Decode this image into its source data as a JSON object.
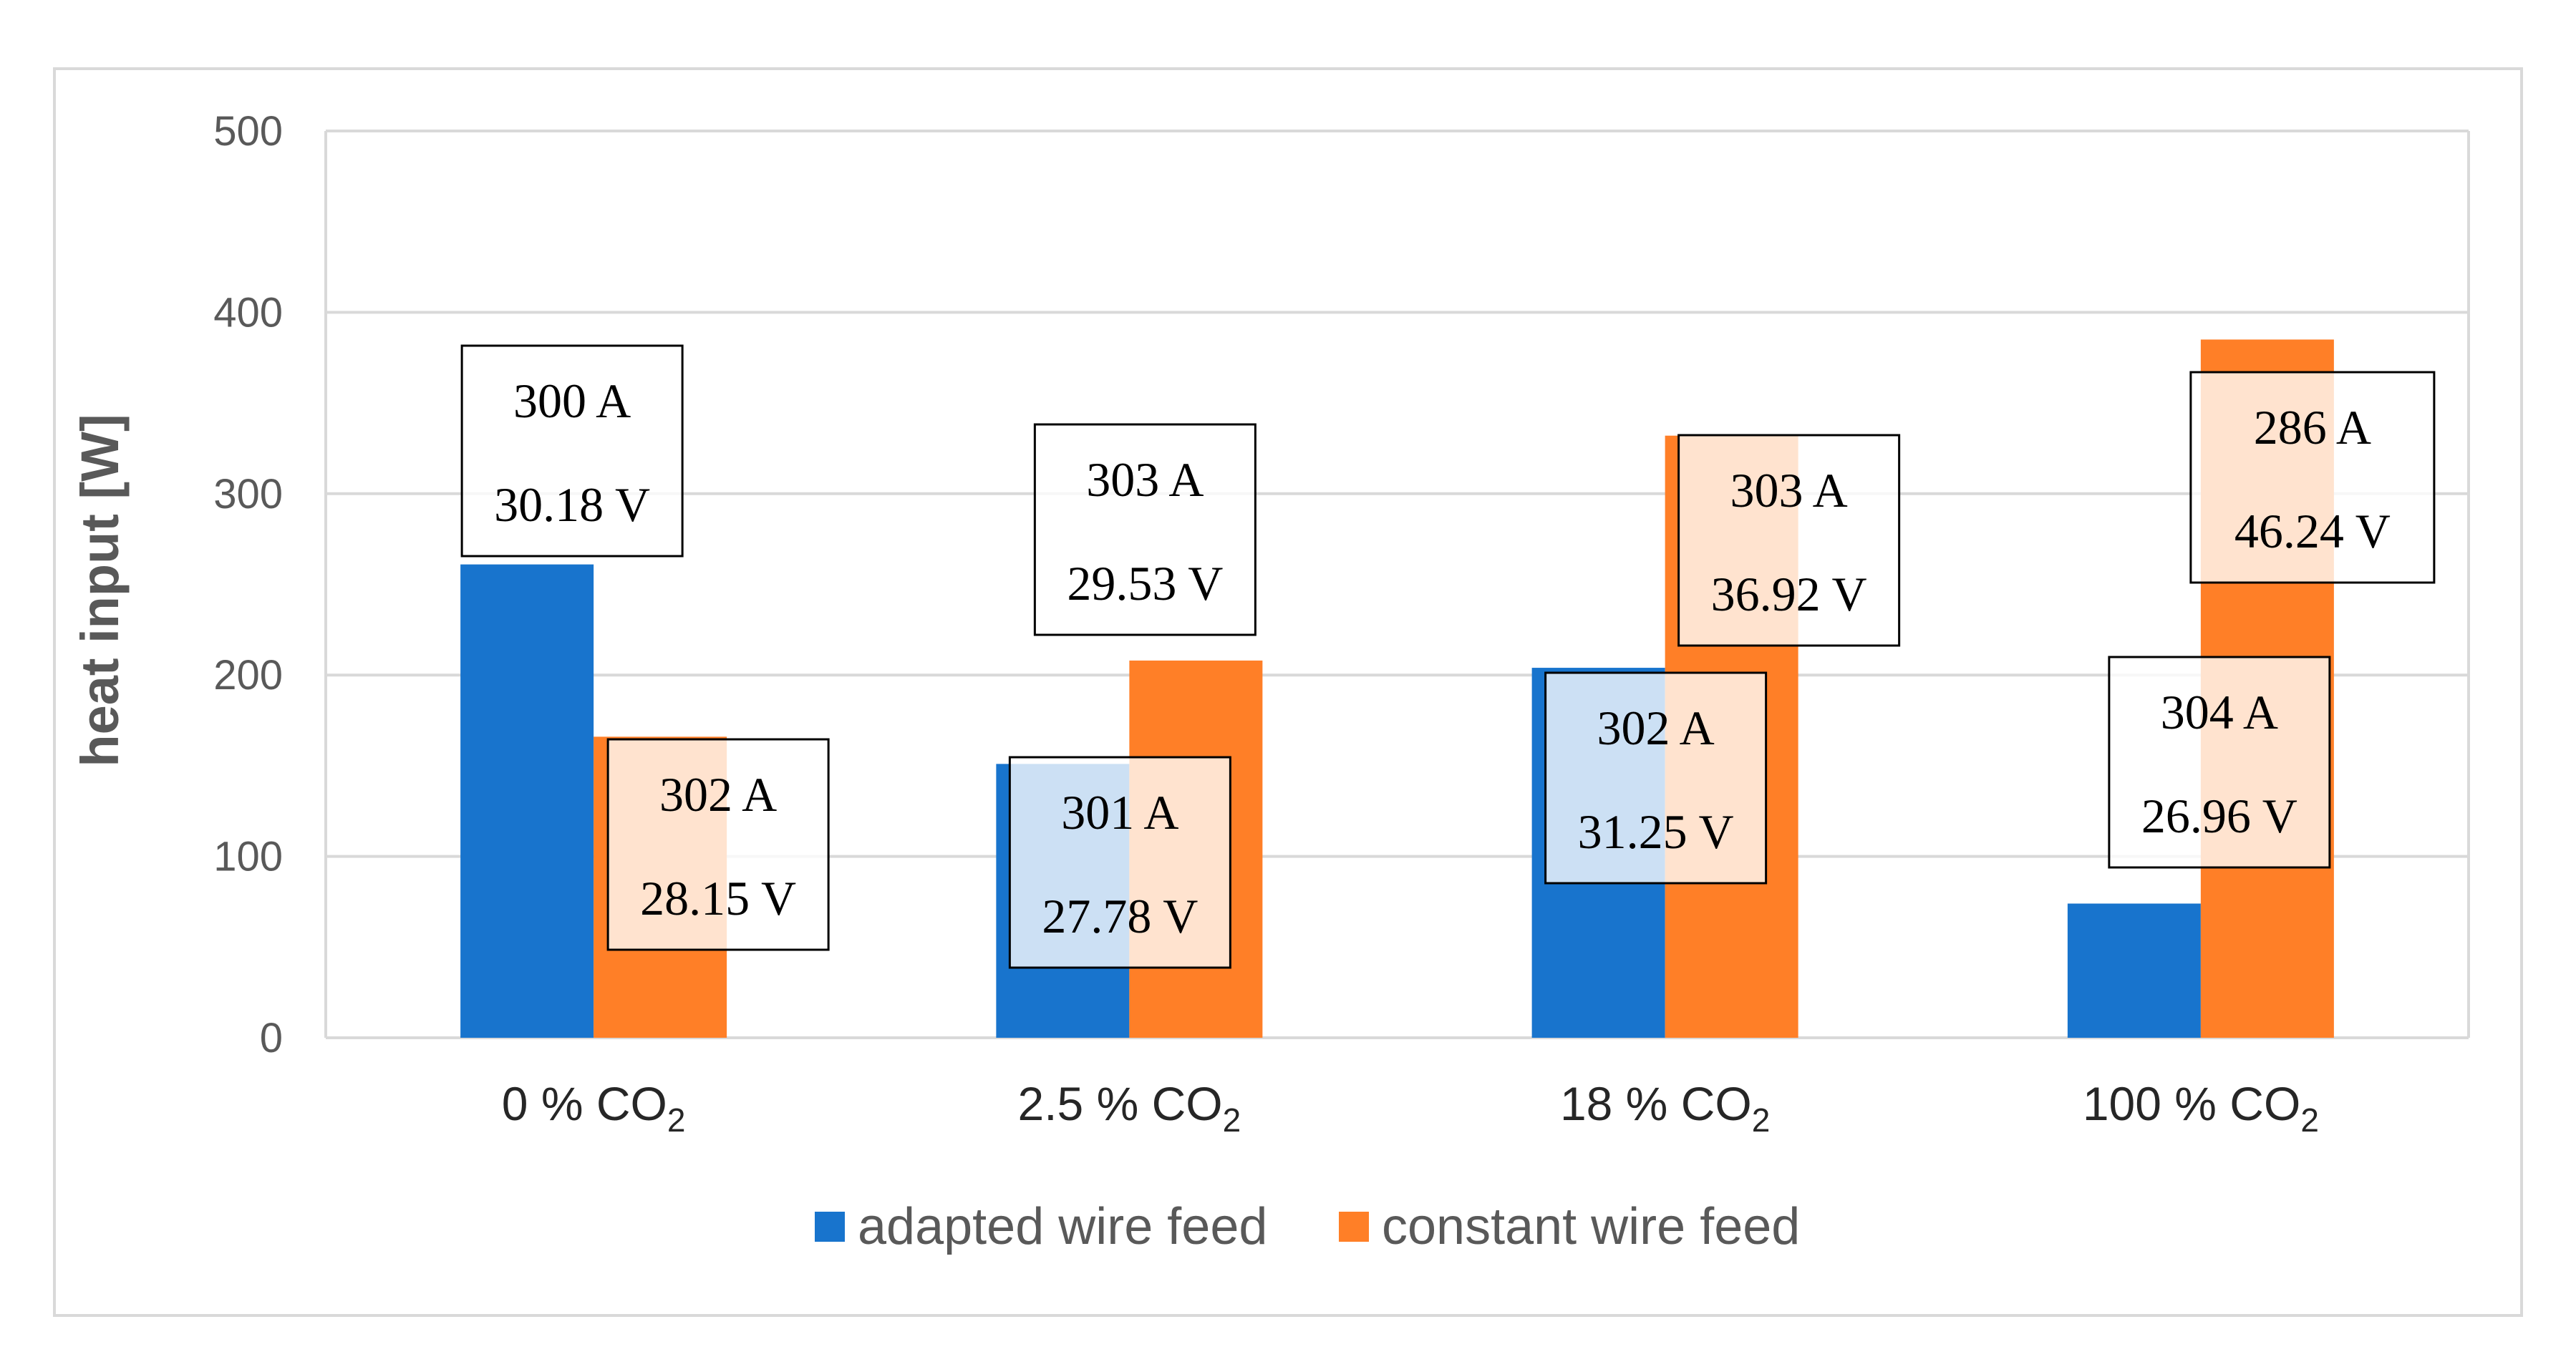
{
  "chart_data": {
    "type": "bar",
    "title": "",
    "xlabel": "",
    "ylabel": "heat input [W]",
    "ylim": [
      0,
      500
    ],
    "yticks": [
      "0",
      "100",
      "200",
      "300",
      "400",
      "500"
    ],
    "grid": true,
    "legend_position": "bottom",
    "categories": [
      {
        "main": "0 % CO",
        "sub": "2"
      },
      {
        "main": "2.5 % CO",
        "sub": "2"
      },
      {
        "main": "18 % CO",
        "sub": "2"
      },
      {
        "main": "100 % CO",
        "sub": "2"
      }
    ],
    "series": [
      {
        "name": "adapted wire feed",
        "color": "#1874CD",
        "values": [
          261,
          151,
          204,
          74
        ],
        "annotations": [
          [
            "300 A",
            "30.18 V"
          ],
          [
            "301 A",
            "27.78 V"
          ],
          [
            "302 A",
            "31.25 V"
          ],
          [
            "304 A",
            "26.96 V"
          ]
        ]
      },
      {
        "name": "constant wire feed",
        "color": "#FF7F27",
        "values": [
          166,
          208,
          332,
          385
        ],
        "annotations": [
          [
            "302 A",
            "28.15 V"
          ],
          [
            "303 A",
            "29.53 V"
          ],
          [
            "303 A",
            "36.92 V"
          ],
          [
            "286 A",
            "46.24 V"
          ]
        ]
      }
    ]
  }
}
